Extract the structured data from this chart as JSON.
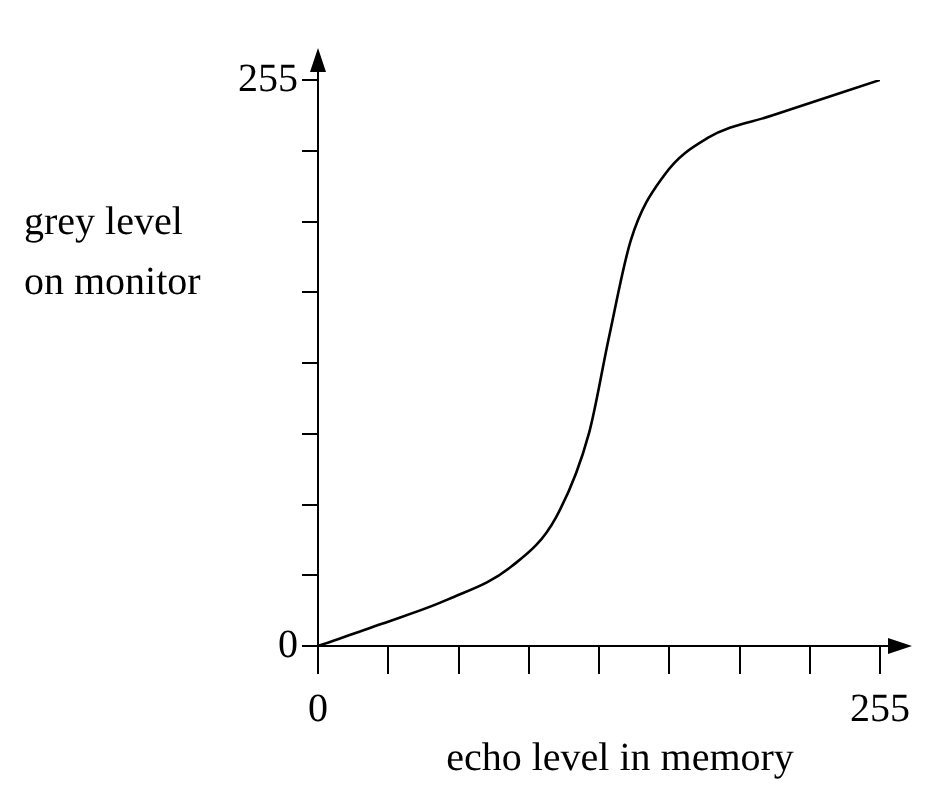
{
  "chart_data": {
    "type": "line",
    "xlabel": "echo level in memory",
    "ylabel": "grey level\non monitor",
    "xlim": [
      0,
      255
    ],
    "ylim": [
      0,
      255
    ],
    "xticks": [
      0,
      {
        "value": 31.875,
        "label": null
      },
      {
        "value": 63.75,
        "label": null
      },
      {
        "value": 95.625,
        "label": null
      },
      {
        "value": 127.5,
        "label": null
      },
      {
        "value": 159.375,
        "label": null
      },
      {
        "value": 191.25,
        "label": null
      },
      {
        "value": 223.125,
        "label": null
      },
      255
    ],
    "yticks": [
      0,
      {
        "value": 31.875,
        "label": null
      },
      {
        "value": 63.75,
        "label": null
      },
      {
        "value": 95.625,
        "label": null
      },
      {
        "value": 127.5,
        "label": null
      },
      {
        "value": 159.375,
        "label": null
      },
      {
        "value": 191.25,
        "label": null
      },
      {
        "value": 223.125,
        "label": null
      },
      255
    ],
    "grid": false,
    "legend": false,
    "marker": "none",
    "line_style": "solid",
    "series": [
      {
        "color": "#000000",
        "x": [
          0,
          29,
          59,
          88,
          108,
          123,
          132,
          142,
          157,
          177,
          206,
          255
        ],
        "values": [
          0,
          10,
          21,
          36,
          58,
          96,
          139,
          183,
          212,
          229,
          239,
          255
        ]
      }
    ]
  }
}
